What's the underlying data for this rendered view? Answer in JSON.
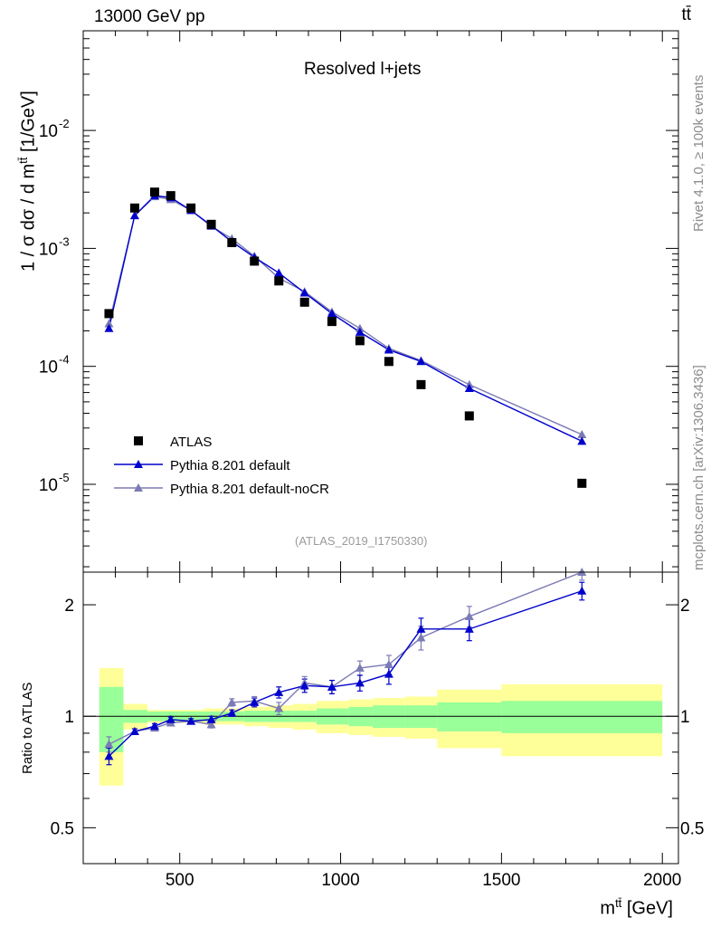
{
  "header": {
    "energy_label": "13000 GeV pp",
    "process_label": "tt̄",
    "plot_title": "Resolved l+jets",
    "analysis_id": "(ATLAS_2019_I1750330)",
    "rivet_label": "Rivet 4.1.0, ≥ 100k events",
    "mcplots_label": "mcplots.cern.ch [arXiv:1306.3436]"
  },
  "axes": {
    "y_main_label": "1 / σ dσ / d m",
    "y_main_sup": "tt̄",
    "y_main_unit": " [1/GeV]",
    "y_ratio_label": "Ratio to ATLAS",
    "x_label": "m",
    "x_sup": "tt̄",
    "x_unit": " [GeV]"
  },
  "colors": {
    "data": "#000000",
    "pythia_default": "#0000cc",
    "pythia_nocr": "#7b7bb5",
    "band_inner": "#99ff99",
    "band_outer": "#ffff99"
  },
  "chart_data": {
    "type": "line",
    "xlim": [
      200,
      2050
    ],
    "ylim_main_log": [
      1.8e-06,
      0.07
    ],
    "ylim_ratio_log": [
      0.4,
      2.45
    ],
    "x_ticks": [
      "500",
      "1000",
      "1500",
      "2000"
    ],
    "y_main_ticks": [
      "10",
      "10",
      "10",
      "10"
    ],
    "y_main_tick_exps": [
      "-2",
      "-3",
      "-4",
      "-5"
    ],
    "y_main_tick_values": [
      0.01,
      0.001,
      0.0001,
      1e-05
    ],
    "y_ratio_ticks": [
      "2",
      "1",
      "0.5"
    ],
    "y_ratio_tick_values": [
      2,
      1,
      0.5
    ],
    "bin_edges": [
      250,
      325,
      400,
      450,
      500,
      575,
      625,
      700,
      775,
      850,
      925,
      1025,
      1100,
      1200,
      1300,
      1500,
      2000
    ],
    "x": [
      280,
      360,
      422,
      472,
      535,
      598,
      662,
      732,
      808,
      888,
      973,
      1060,
      1150,
      1250,
      1400,
      1750
    ],
    "series": [
      {
        "name": "ATLAS",
        "marker": "square",
        "values": [
          0.00028,
          0.0022,
          0.003,
          0.0028,
          0.0022,
          0.0016,
          0.00112,
          0.00078,
          0.00053,
          0.00035,
          0.00024,
          0.000165,
          0.00011,
          7e-05,
          3.8e-05,
          1.02e-05
        ]
      },
      {
        "name": "Pythia 8.201 default",
        "marker": "triangle",
        "values": [
          0.00021,
          0.0019,
          0.0028,
          0.0027,
          0.0021,
          0.00156,
          0.00114,
          0.00084,
          0.00062,
          0.00042,
          0.00028,
          0.000195,
          0.000138,
          0.00011,
          6.5e-05,
          2.32e-05
        ],
        "ratio": [
          0.78,
          0.91,
          0.94,
          0.98,
          0.97,
          0.98,
          1.02,
          1.09,
          1.16,
          1.21,
          1.2,
          1.23,
          1.3,
          1.72,
          1.72,
          2.18
        ],
        "ratio_err": [
          0.04,
          0.015,
          0.015,
          0.015,
          0.015,
          0.02,
          0.02,
          0.03,
          0.04,
          0.05,
          0.05,
          0.06,
          0.08,
          0.12,
          0.12,
          0.12
        ]
      },
      {
        "name": "Pythia 8.201 default-noCR",
        "marker": "triangle",
        "values": [
          0.00023,
          0.0019,
          0.00275,
          0.0026,
          0.0021,
          0.00154,
          0.00121,
          0.00086,
          0.00056,
          0.00043,
          0.00029,
          0.00021,
          0.000142,
          0.000112,
          7e-05,
          2.64e-05
        ],
        "ratio": [
          0.84,
          0.91,
          0.93,
          0.96,
          0.97,
          0.95,
          1.09,
          1.1,
          1.05,
          1.23,
          1.2,
          1.35,
          1.38,
          1.63,
          1.86,
          2.45
        ],
        "ratio_err": [
          0.04,
          0.015,
          0.015,
          0.015,
          0.015,
          0.02,
          0.025,
          0.03,
          0.04,
          0.05,
          0.05,
          0.06,
          0.08,
          0.12,
          0.12,
          0.12
        ]
      }
    ],
    "band_inner_err": [
      0.2,
      0.04,
      0.03,
      0.03,
      0.03,
      0.03,
      0.03,
      0.035,
      0.035,
      0.035,
      0.05,
      0.06,
      0.07,
      0.07,
      0.09,
      0.1
    ],
    "band_outer_err": [
      0.35,
      0.08,
      0.04,
      0.04,
      0.04,
      0.05,
      0.05,
      0.06,
      0.07,
      0.08,
      0.1,
      0.11,
      0.12,
      0.13,
      0.18,
      0.22
    ]
  }
}
